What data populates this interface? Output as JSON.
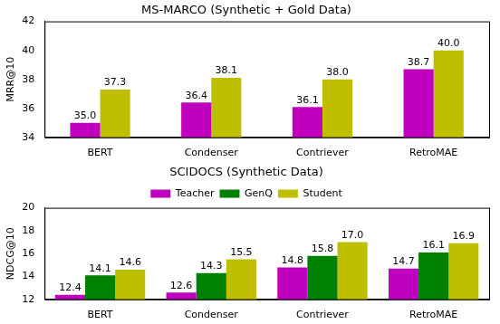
{
  "chart_data": [
    {
      "type": "bar",
      "title": "MS-MARCO (Synthetic + Gold Data)",
      "y_label": "MRR@10",
      "categories": [
        "BERT",
        "Condenser",
        "Contriever",
        "RetroMAE"
      ],
      "series": [
        {
          "name": "Teacher",
          "color": "#bf00bf",
          "values": [
            35.0,
            36.4,
            36.1,
            38.7
          ],
          "value_labels": [
            "35.0",
            "36.4",
            "36.1",
            "38.7"
          ]
        },
        {
          "name": "Student",
          "color": "#bfbf00",
          "values": [
            37.3,
            38.1,
            38.0,
            40.0
          ],
          "value_labels": [
            "37.3",
            "38.1",
            "38.0",
            "40.0"
          ]
        }
      ],
      "ylim": [
        34,
        42
      ],
      "yticks": [
        34,
        36,
        38,
        40,
        42
      ],
      "grid": false,
      "data_labels": true
    },
    {
      "type": "bar",
      "title": "SCIDOCS (Synthetic Data)",
      "y_label": "NDCG@10",
      "categories": [
        "BERT",
        "Condenser",
        "Contriever",
        "RetroMAE"
      ],
      "series": [
        {
          "name": "Teacher",
          "color": "#bf00bf",
          "values": [
            12.4,
            12.6,
            14.8,
            14.7
          ],
          "value_labels": [
            "12.4",
            "12.6",
            "14.8",
            "14.7"
          ]
        },
        {
          "name": "GenQ",
          "color": "#008000",
          "values": [
            14.1,
            14.3,
            15.8,
            16.1
          ],
          "value_labels": [
            "14.1",
            "14.3",
            "15.8",
            "16.1"
          ]
        },
        {
          "name": "Student",
          "color": "#bfbf00",
          "values": [
            14.6,
            15.5,
            17.0,
            16.9
          ],
          "value_labels": [
            "14.6",
            "15.5",
            "17.0",
            "16.9"
          ]
        }
      ],
      "ylim": [
        12,
        20
      ],
      "yticks": [
        12,
        14,
        16,
        18,
        20
      ],
      "grid": false,
      "data_labels": true,
      "legend": "top"
    }
  ]
}
